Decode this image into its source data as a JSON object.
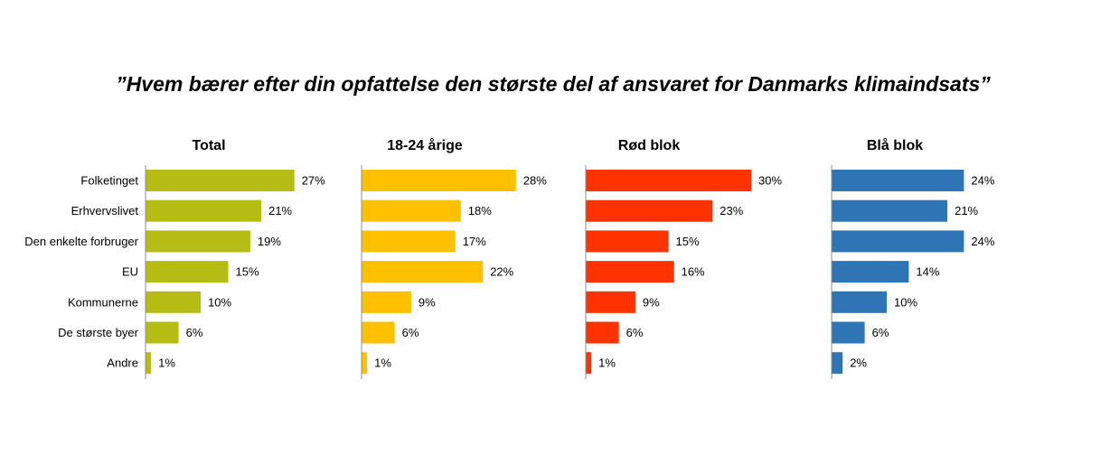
{
  "chart_data": {
    "type": "bar",
    "orientation": "horizontal",
    "title": "”Hvem bærer efter din opfattelse den største del af ansvaret for Danmarks klimaindsats”",
    "categories": [
      "Folketinget",
      "Erhvervslivet",
      "Den enkelte forbruger",
      "EU",
      "Kommunerne",
      "De største byer",
      "Andre"
    ],
    "value_suffix": "%",
    "xlim": [
      0,
      35
    ],
    "grid": false,
    "legend": "none",
    "series": [
      {
        "name": "Total",
        "color": "#b5bd14",
        "values": [
          27,
          21,
          19,
          15,
          10,
          6,
          1
        ]
      },
      {
        "name": "18-24 årige",
        "color": "#ffc000",
        "values": [
          28,
          18,
          17,
          22,
          9,
          6,
          1
        ]
      },
      {
        "name": "Rød blok",
        "color": "#ff3300",
        "values": [
          30,
          23,
          15,
          16,
          9,
          6,
          1
        ]
      },
      {
        "name": "Blå blok",
        "color": "#2e75b6",
        "values": [
          24,
          21,
          24,
          14,
          10,
          6,
          2
        ]
      }
    ]
  }
}
